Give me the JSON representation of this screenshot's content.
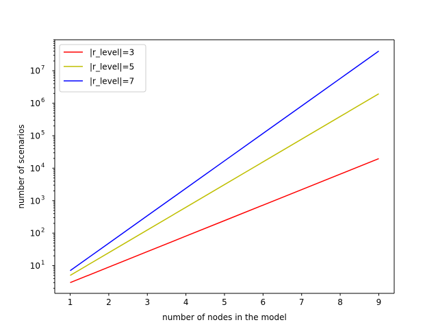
{
  "chart_data": {
    "type": "line",
    "xlabel": "number of nodes in the model",
    "ylabel": "number of scenarios",
    "x": [
      1,
      2,
      3,
      4,
      5,
      6,
      7,
      8,
      9
    ],
    "xlim": [
      0.6,
      9.4
    ],
    "ylim": [
      1.4,
      90000000
    ],
    "yscale": "log",
    "grid": false,
    "legend_position": "top-left",
    "x_ticks": [
      1,
      2,
      3,
      4,
      5,
      6,
      7,
      8,
      9
    ],
    "x_tick_labels": [
      "1",
      "2",
      "3",
      "4",
      "5",
      "6",
      "7",
      "8",
      "9"
    ],
    "y_ticks": [
      1,
      2,
      3,
      4,
      5,
      6,
      7
    ],
    "y_tick_labels": [
      {
        "base": "10",
        "exp": "1"
      },
      {
        "base": "10",
        "exp": "2"
      },
      {
        "base": "10",
        "exp": "3"
      },
      {
        "base": "10",
        "exp": "4"
      },
      {
        "base": "10",
        "exp": "5"
      },
      {
        "base": "10",
        "exp": "6"
      },
      {
        "base": "10",
        "exp": "7"
      }
    ],
    "series": [
      {
        "name": "|r_level|=3",
        "color": "#ff0000",
        "values": [
          3,
          9,
          27,
          81,
          243,
          729,
          2187,
          6561,
          19683
        ]
      },
      {
        "name": "|r_level|=5",
        "color": "#bfbf00",
        "values": [
          5,
          25,
          125,
          625,
          3125,
          15625,
          78125,
          390625,
          1953125
        ]
      },
      {
        "name": "|r_level|=7",
        "color": "#0000ff",
        "values": [
          7,
          49,
          343,
          2401,
          16807,
          117649,
          823543,
          5764801,
          40353607
        ]
      }
    ]
  }
}
